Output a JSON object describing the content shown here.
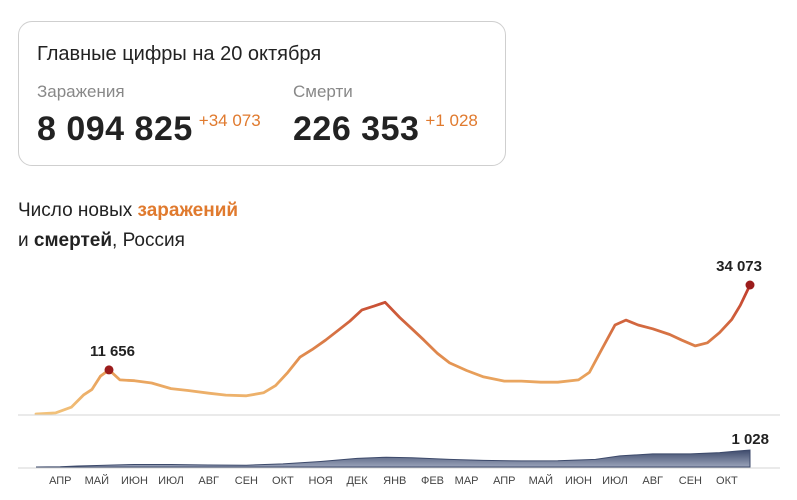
{
  "summary": {
    "title": "Главные цифры на 20 октября",
    "infections": {
      "label": "Заражения",
      "value": "8 094 825",
      "delta": "+34 073"
    },
    "deaths": {
      "label": "Смерти",
      "value": "226 353",
      "delta": "+1 028"
    }
  },
  "chart_title": {
    "line1_prefix": "Число новых ",
    "line1_highlight": "заражений",
    "line2_prefix": "и ",
    "line2_bold": "смертей",
    "line2_suffix": ", Россия"
  },
  "colors": {
    "accent": "#e07a2e",
    "low_cases": "#f2c27b",
    "mid_cases": "#e69a55",
    "high_cases": "#c0392b",
    "deaths_area": "#3d4a6b",
    "marker": "#9b1c1c"
  },
  "chart_data": {
    "type": "area",
    "x_ticks": [
      "АПР",
      "МАЙ",
      "ИЮН",
      "ИЮЛ",
      "АВГ",
      "СЕН",
      "ОКТ",
      "НОЯ",
      "ДЕК",
      "ЯНВ",
      "ФЕВ",
      "МАР",
      "АПР",
      "МАЙ",
      "ИЮН",
      "ИЮЛ",
      "АВГ",
      "СЕН",
      "ОКТ"
    ],
    "x_range": [
      "2020-03-12",
      "2021-10-20"
    ],
    "series": [
      {
        "id": "infections",
        "points": [
          [
            "2020-03-12",
            0
          ],
          [
            "2020-03-28",
            300
          ],
          [
            "2020-04-10",
            1800
          ],
          [
            "2020-04-20",
            5000
          ],
          [
            "2020-04-27",
            6500
          ],
          [
            "2020-05-04",
            10000
          ],
          [
            "2020-05-11",
            11656
          ],
          [
            "2020-05-20",
            9000
          ],
          [
            "2020-06-01",
            8800
          ],
          [
            "2020-06-15",
            8200
          ],
          [
            "2020-07-01",
            6700
          ],
          [
            "2020-07-15",
            6200
          ],
          [
            "2020-08-01",
            5500
          ],
          [
            "2020-08-15",
            5000
          ],
          [
            "2020-09-01",
            4800
          ],
          [
            "2020-09-15",
            5600
          ],
          [
            "2020-09-25",
            7500
          ],
          [
            "2020-10-05",
            11000
          ],
          [
            "2020-10-15",
            15000
          ],
          [
            "2020-10-25",
            17000
          ],
          [
            "2020-11-05",
            19500
          ],
          [
            "2020-11-15",
            22000
          ],
          [
            "2020-11-25",
            24500
          ],
          [
            "2020-12-05",
            27500
          ],
          [
            "2020-12-15",
            28500
          ],
          [
            "2020-12-24",
            29500
          ],
          [
            "2021-01-05",
            25500
          ],
          [
            "2021-01-15",
            22500
          ],
          [
            "2021-01-25",
            19500
          ],
          [
            "2021-02-05",
            16000
          ],
          [
            "2021-02-15",
            13500
          ],
          [
            "2021-03-01",
            11500
          ],
          [
            "2021-03-15",
            9800
          ],
          [
            "2021-04-01",
            8700
          ],
          [
            "2021-04-15",
            8700
          ],
          [
            "2021-05-01",
            8400
          ],
          [
            "2021-05-15",
            8400
          ],
          [
            "2021-06-01",
            9000
          ],
          [
            "2021-06-10",
            11000
          ],
          [
            "2021-06-20",
            17000
          ],
          [
            "2021-07-01",
            23500
          ],
          [
            "2021-07-10",
            24800
          ],
          [
            "2021-07-20",
            23500
          ],
          [
            "2021-08-01",
            22500
          ],
          [
            "2021-08-15",
            21000
          ],
          [
            "2021-08-25",
            19500
          ],
          [
            "2021-09-05",
            18000
          ],
          [
            "2021-09-15",
            18800
          ],
          [
            "2021-09-25",
            21500
          ],
          [
            "2021-10-05",
            25000
          ],
          [
            "2021-10-12",
            28700
          ],
          [
            "2021-10-20",
            34073
          ]
        ]
      },
      {
        "id": "deaths",
        "points": [
          [
            "2020-03-12",
            0
          ],
          [
            "2020-04-01",
            10
          ],
          [
            "2020-04-15",
            60
          ],
          [
            "2020-05-01",
            90
          ],
          [
            "2020-05-15",
            120
          ],
          [
            "2020-06-01",
            150
          ],
          [
            "2020-07-01",
            150
          ],
          [
            "2020-08-01",
            120
          ],
          [
            "2020-09-01",
            110
          ],
          [
            "2020-10-01",
            190
          ],
          [
            "2020-11-01",
            330
          ],
          [
            "2020-12-01",
            520
          ],
          [
            "2020-12-25",
            590
          ],
          [
            "2021-01-15",
            560
          ],
          [
            "2021-02-15",
            460
          ],
          [
            "2021-03-15",
            400
          ],
          [
            "2021-04-15",
            370
          ],
          [
            "2021-05-15",
            380
          ],
          [
            "2021-06-15",
            460
          ],
          [
            "2021-07-05",
            670
          ],
          [
            "2021-08-01",
            790
          ],
          [
            "2021-09-01",
            790
          ],
          [
            "2021-09-25",
            870
          ],
          [
            "2021-10-10",
            970
          ],
          [
            "2021-10-20",
            1028
          ]
        ]
      }
    ],
    "annotations": [
      {
        "series": "infections",
        "x": "2020-05-11",
        "value": 11656,
        "label": "11 656"
      },
      {
        "series": "infections",
        "x": "2021-10-20",
        "value": 34073,
        "label": "34 073"
      },
      {
        "series": "deaths",
        "x": "2021-10-20",
        "value": 1028,
        "label": "1 028"
      }
    ]
  }
}
